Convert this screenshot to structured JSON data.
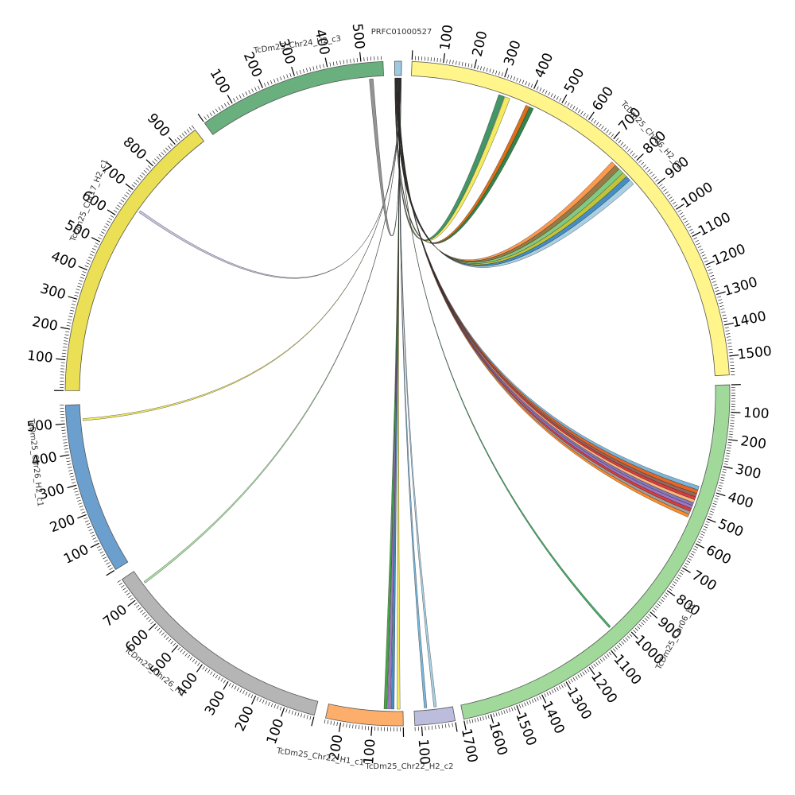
{
  "chart_data": {
    "type": "chord",
    "title": "",
    "segments": [
      {
        "name": "PRFC01000527",
        "length": 22,
        "color": "#9ecae1",
        "tick_step": 0
      },
      {
        "name": "TcDm25_Chr06_H2_c2",
        "length": 1560,
        "color": "#fff58a",
        "tick_step": 100
      },
      {
        "name": "TcDm25_Chr06_H1",
        "length": 1700,
        "color": "#a1d99b",
        "tick_step": 100
      },
      {
        "name": "TcDm25_Chr22_H2_c2",
        "length": 120,
        "color": "#bcbddc",
        "tick_step": 100
      },
      {
        "name": "TcDm25_Chr22_H1_c1",
        "length": 250,
        "color": "#fdae6b",
        "tick_step": 100
      },
      {
        "name": "TcDm25_Chr26_H1",
        "length": 780,
        "color": "#b5b5b5",
        "tick_step": 100
      },
      {
        "name": "TcDm25_Chr26_H2_c1",
        "length": 560,
        "color": "#6b9fce",
        "tick_step": 100
      },
      {
        "name": "TcDm25_Chr17_H2_c1",
        "length": 980,
        "color": "#ebe055",
        "tick_step": 100
      },
      {
        "name": "TcDm25_Chr24_H2_c3",
        "length": 565,
        "color": "#6aaf7e",
        "tick_step": 100
      }
    ],
    "links": [
      {
        "target": "TcDm25_Chr06_H2_c2",
        "start": 300,
        "end": 320,
        "color": "#2e8b57"
      },
      {
        "target": "TcDm25_Chr06_H2_c2",
        "start": 322,
        "end": 340,
        "color": "#f2e94e"
      },
      {
        "target": "TcDm25_Chr06_H2_c2",
        "start": 398,
        "end": 412,
        "color": "#d95f02"
      },
      {
        "target": "TcDm25_Chr06_H2_c2",
        "start": 412,
        "end": 426,
        "color": "#1b7837"
      },
      {
        "target": "TcDm25_Chr06_H2_c2",
        "start": 745,
        "end": 762,
        "color": "#fd8d3c"
      },
      {
        "target": "TcDm25_Chr06_H2_c2",
        "start": 762,
        "end": 780,
        "color": "#8c6d31"
      },
      {
        "target": "TcDm25_Chr06_H2_c2",
        "start": 780,
        "end": 798,
        "color": "#74c476"
      },
      {
        "target": "TcDm25_Chr06_H2_c2",
        "start": 798,
        "end": 815,
        "color": "#bcbd22"
      },
      {
        "target": "TcDm25_Chr06_H2_c2",
        "start": 815,
        "end": 832,
        "color": "#3182bd"
      },
      {
        "target": "TcDm25_Chr06_H2_c2",
        "start": 832,
        "end": 850,
        "color": "#9ecae1"
      },
      {
        "target": "TcDm25_Chr06_H1",
        "start": 395,
        "end": 410,
        "color": "#6baed6"
      },
      {
        "target": "TcDm25_Chr06_H1",
        "start": 410,
        "end": 425,
        "color": "#e6550d"
      },
      {
        "target": "TcDm25_Chr06_H1",
        "start": 425,
        "end": 438,
        "color": "#8c564b"
      },
      {
        "target": "TcDm25_Chr06_H1",
        "start": 438,
        "end": 450,
        "color": "#d62728"
      },
      {
        "target": "TcDm25_Chr06_H1",
        "start": 450,
        "end": 462,
        "color": "#fdae6b"
      },
      {
        "target": "TcDm25_Chr06_H1",
        "start": 462,
        "end": 474,
        "color": "#756bb1"
      },
      {
        "target": "TcDm25_Chr06_H1",
        "start": 474,
        "end": 486,
        "color": "#9467bd"
      },
      {
        "target": "TcDm25_Chr06_H1",
        "start": 486,
        "end": 498,
        "color": "#d62728"
      },
      {
        "target": "TcDm25_Chr06_H1",
        "start": 498,
        "end": 510,
        "color": "#969696"
      },
      {
        "target": "TcDm25_Chr06_H1",
        "start": 510,
        "end": 522,
        "color": "#ff7f0e"
      },
      {
        "target": "TcDm25_Chr06_H1",
        "start": 1042,
        "end": 1050,
        "color": "#31a354"
      },
      {
        "target": "TcDm25_Chr22_H2_c2",
        "start": 50,
        "end": 58,
        "color": "#9ecae1"
      },
      {
        "target": "TcDm25_Chr22_H2_c2",
        "start": 80,
        "end": 88,
        "color": "#6baed6"
      },
      {
        "target": "TcDm25_Chr22_H1_c1",
        "start": 10,
        "end": 20,
        "color": "#f2e94e"
      },
      {
        "target": "TcDm25_Chr22_H1_c1",
        "start": 30,
        "end": 40,
        "color": "#3182bd"
      },
      {
        "target": "TcDm25_Chr22_H1_c1",
        "start": 42,
        "end": 52,
        "color": "#9467bd"
      },
      {
        "target": "TcDm25_Chr22_H1_c1",
        "start": 54,
        "end": 64,
        "color": "#2ca02c"
      },
      {
        "target": "TcDm25_Chr26_H1",
        "start": 725,
        "end": 732,
        "color": "#a1d99b"
      },
      {
        "target": "TcDm25_Chr26_H2_c1",
        "start": 505,
        "end": 512,
        "color": "#f2e94e"
      },
      {
        "target": "TcDm25_Chr17_H2_c1",
        "start": 650,
        "end": 658,
        "color": "#bcbddc"
      },
      {
        "target": "TcDm25_Chr24_H2_c3",
        "start": 520,
        "end": 532,
        "color": "#888888"
      }
    ]
  }
}
